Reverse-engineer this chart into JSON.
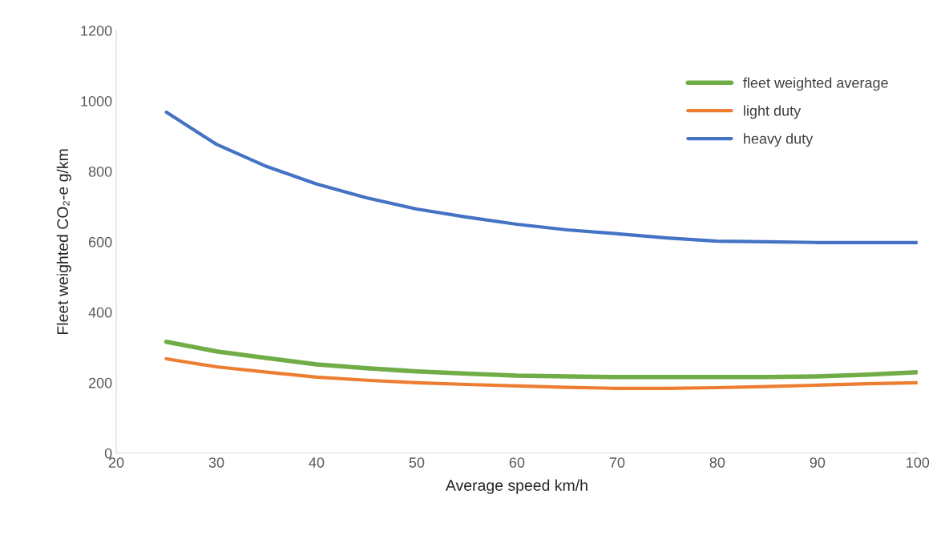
{
  "chart_data": {
    "type": "line",
    "xlabel": "Average speed km/h",
    "ylabel": "Fleet weighted CO₂-e g/km",
    "x": [
      25,
      30,
      35,
      40,
      45,
      50,
      55,
      60,
      65,
      70,
      75,
      80,
      85,
      90,
      95,
      100
    ],
    "series": [
      {
        "name": "fleet weighted average",
        "color": "#70ad47",
        "values": [
          316,
          289,
          270,
          252,
          241,
          232,
          226,
          220,
          218,
          216,
          216,
          216,
          216,
          218,
          223,
          230
        ]
      },
      {
        "name": "light duty",
        "color": "#ed7d31",
        "values": [
          268,
          245,
          230,
          216,
          207,
          200,
          195,
          191,
          187,
          184,
          184,
          186,
          189,
          193,
          197,
          200
        ]
      },
      {
        "name": "heavy duty",
        "color": "#4472c4",
        "values": [
          968,
          877,
          814,
          764,
          725,
          693,
          670,
          650,
          634,
          623,
          611,
          602,
          600,
          598,
          598,
          598
        ]
      }
    ],
    "xlim": [
      20,
      100
    ],
    "xticks": [
      20,
      30,
      40,
      50,
      60,
      70,
      80,
      90,
      100
    ],
    "ylim": [
      0,
      1200
    ],
    "yticks": [
      0,
      200,
      400,
      600,
      800,
      1000,
      1200
    ],
    "grid": false,
    "legend": "top right",
    "marker": "none",
    "line_style": "solid"
  }
}
